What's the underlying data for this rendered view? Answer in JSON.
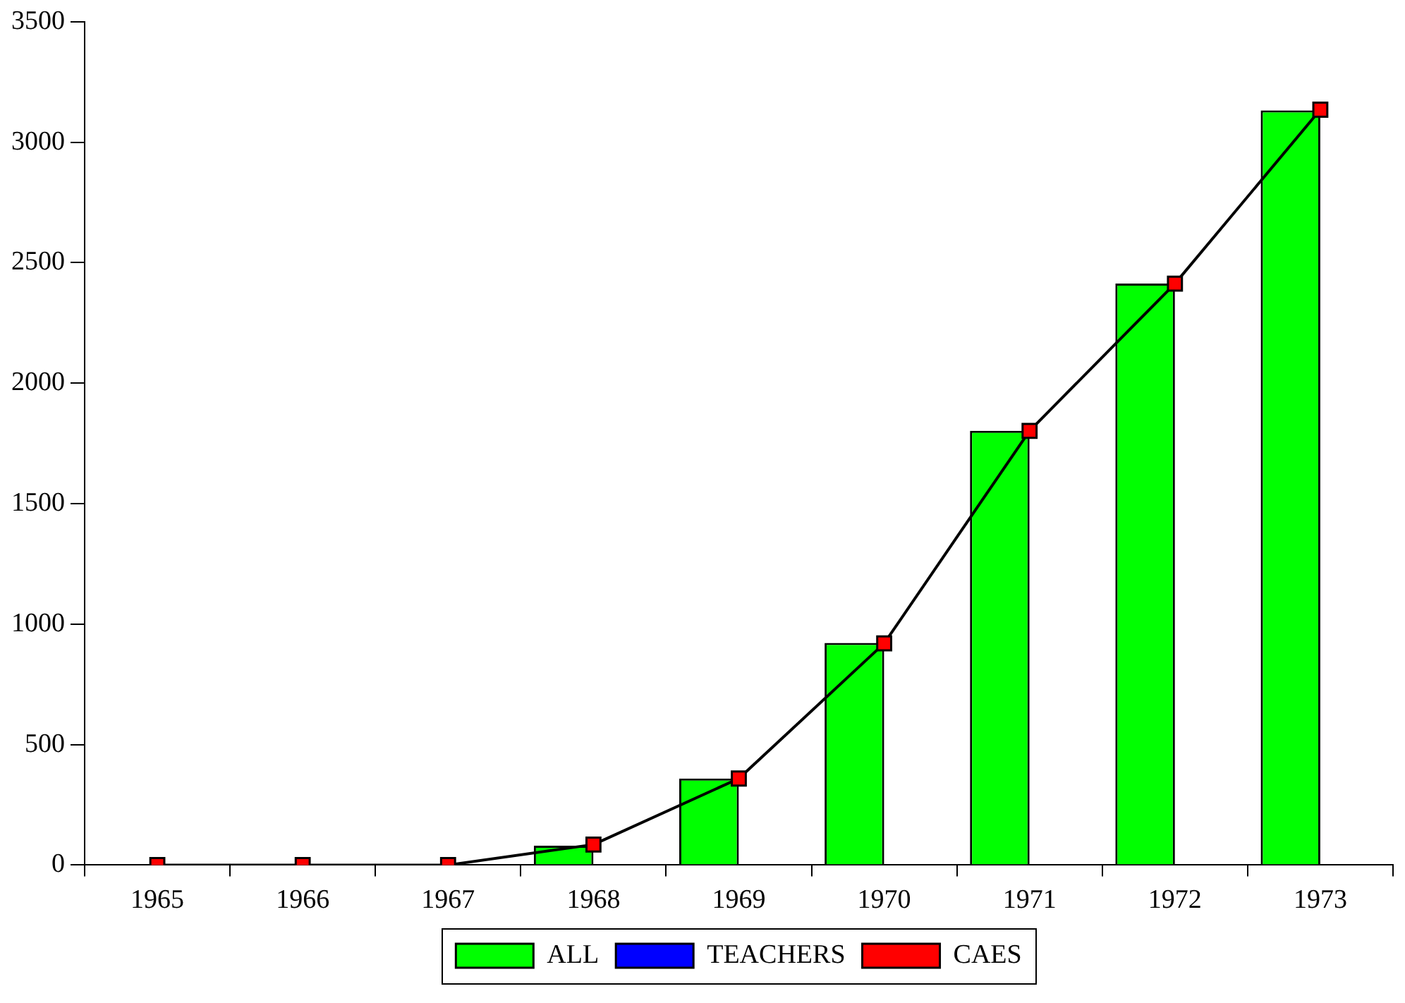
{
  "chart_data": {
    "type": "bar",
    "categories": [
      "1965",
      "1966",
      "1967",
      "1968",
      "1969",
      "1970",
      "1971",
      "1972",
      "1973"
    ],
    "series": [
      {
        "name": "ALL",
        "color": "#00ff00",
        "values": [
          0,
          0,
          0,
          80,
          359,
          922,
          1802,
          2413,
          3132
        ]
      },
      {
        "name": "TEACHERS",
        "color": "#0000ff",
        "values": [
          0,
          0,
          0,
          0,
          0,
          0,
          0,
          0,
          0
        ]
      },
      {
        "name": "CAES",
        "type": "line",
        "color": "#ff0000",
        "values": [
          0,
          0,
          0,
          85,
          359,
          920,
          1802,
          2413,
          3135
        ]
      }
    ],
    "ylim": [
      0,
      3500
    ],
    "yticks": [
      0,
      500,
      1000,
      1500,
      2000,
      2500,
      3000,
      3500
    ],
    "grid": false,
    "legend": "bottom",
    "marker": "square",
    "line_style": "solid"
  }
}
